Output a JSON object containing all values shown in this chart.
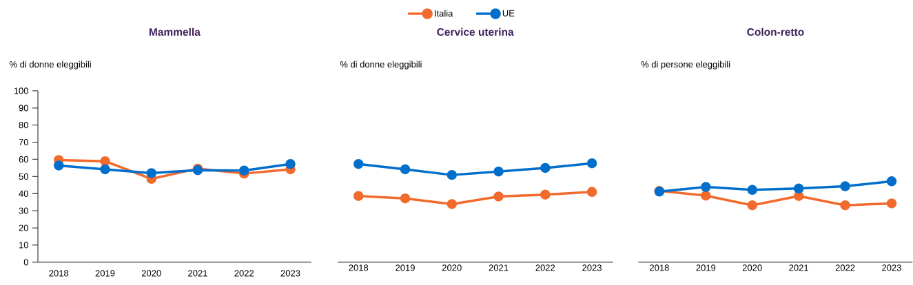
{
  "chart_data": [
    {
      "type": "line",
      "title": "Mammella",
      "ylabel": "% di donne eleggibili",
      "categories": [
        "2018",
        "2019",
        "2020",
        "2021",
        "2022",
        "2023"
      ],
      "ylim": [
        0,
        100
      ],
      "yticks": [
        0,
        10,
        20,
        30,
        40,
        50,
        60,
        70,
        80,
        90,
        100
      ],
      "marker": "circle",
      "series": [
        {
          "color": "#f26a2d",
          "values": [
            59.6,
            58.9,
            48.6,
            54.6,
            51.7,
            54.2
          ]
        },
        {
          "color": "#006fcb",
          "values": [
            56.4,
            54.2,
            52.0,
            53.7,
            53.5,
            57.3
          ]
        }
      ]
    },
    {
      "type": "line",
      "title": "Cervice uterina",
      "ylabel": "% di donne eleggibili",
      "categories": [
        "2018",
        "2019",
        "2020",
        "2021",
        "2022",
        "2023"
      ],
      "ylim": [
        0,
        100
      ],
      "tick_labels": "x",
      "marker": "circle",
      "legend": "top",
      "series": [
        {
          "name": "Italia",
          "color": "#f26a2d",
          "values": [
            38.6,
            37.2,
            33.9,
            38.3,
            39.4,
            41.0
          ]
        },
        {
          "name": "UE",
          "color": "#006fcb",
          "values": [
            57.3,
            54.2,
            50.9,
            52.9,
            55.0,
            57.7
          ]
        }
      ]
    },
    {
      "type": "line",
      "title": "Colon-retto",
      "ylabel": "% di persone eleggibili",
      "categories": [
        "2018",
        "2019",
        "2020",
        "2021",
        "2022",
        "2023"
      ],
      "ylim": [
        0,
        100
      ],
      "tick_labels": "x",
      "marker": "circle",
      "series": [
        {
          "color": "#f26a2d",
          "values": [
            41.6,
            38.8,
            33.2,
            38.6,
            33.2,
            34.3
          ]
        },
        {
          "color": "#006fcb",
          "values": [
            41.2,
            43.9,
            42.2,
            43.0,
            44.3,
            47.2
          ]
        }
      ]
    }
  ]
}
